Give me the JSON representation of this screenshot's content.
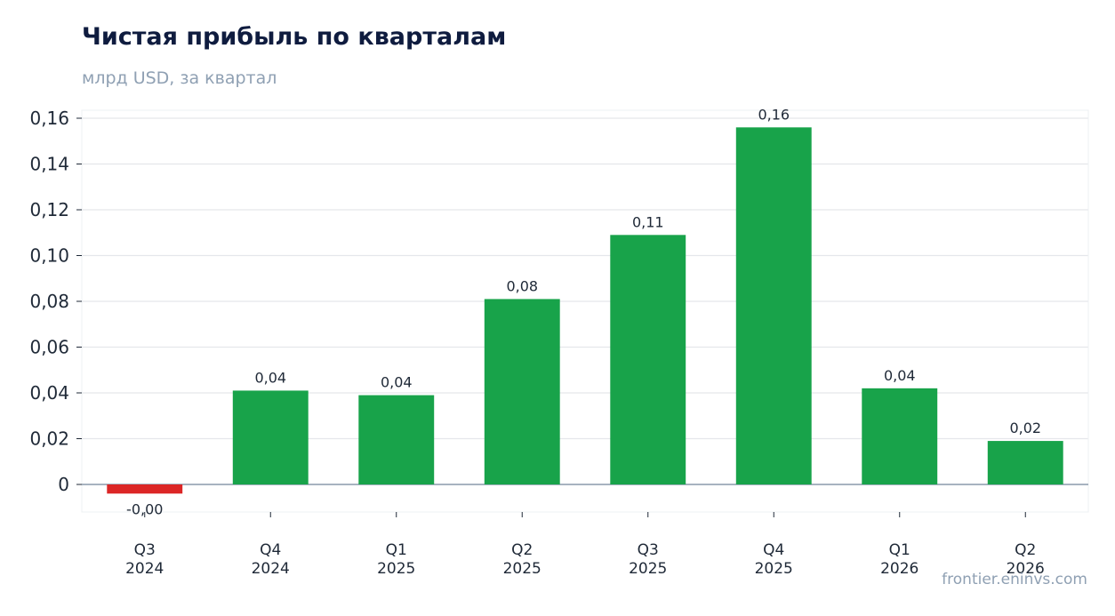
{
  "chart_data": {
    "type": "bar",
    "title": "Чистая прибыль по кварталам",
    "subtitle": "млрд USD, за квартал",
    "categories": [
      [
        "Q3",
        "2024"
      ],
      [
        "Q4",
        "2024"
      ],
      [
        "Q1",
        "2025"
      ],
      [
        "Q2",
        "2025"
      ],
      [
        "Q3",
        "2025"
      ],
      [
        "Q4",
        "2025"
      ],
      [
        "Q1",
        "2026"
      ],
      [
        "Q2",
        "2026"
      ]
    ],
    "values": [
      -0.004,
      0.041,
      0.039,
      0.081,
      0.109,
      0.156,
      0.042,
      0.019
    ],
    "data_labels": [
      "-0,00",
      "0,04",
      "0,04",
      "0,08",
      "0,11",
      "0,16",
      "0,04",
      "0,02"
    ],
    "yticks": [
      0,
      0.02,
      0.04,
      0.06,
      0.08,
      0.1,
      0.12,
      0.14,
      0.16
    ],
    "ytick_labels": [
      "0",
      "0,02",
      "0,04",
      "0,06",
      "0,08",
      "0,10",
      "0,12",
      "0,14",
      "0,16"
    ],
    "ylim": [
      -0.012,
      0.164
    ],
    "grid": true,
    "legend": "none",
    "colors": {
      "positive": "#18a34a",
      "negative": "#dc2626",
      "grid": "#e5e7eb",
      "baseline": "#8a9aab"
    }
  },
  "footer": {
    "watermark": "frontier.eninvs.com"
  }
}
